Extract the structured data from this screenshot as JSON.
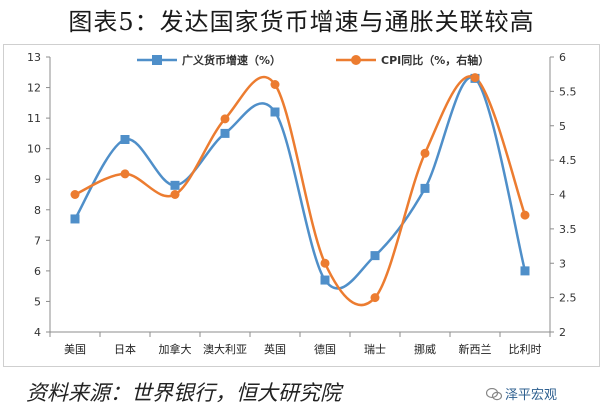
{
  "title": "图表5：发达国家货币增速与通胀关联较高",
  "source": "资料来源：世界银行，恒大研究院",
  "watermark": "泽平宏观",
  "chart_data": {
    "type": "line",
    "categories": [
      "美国",
      "日本",
      "加拿大",
      "澳大利亚",
      "英国",
      "德国",
      "瑞士",
      "挪威",
      "新西兰",
      "比利时"
    ],
    "series": [
      {
        "name": "广义货币增速（%）",
        "axis": "left",
        "marker": "square",
        "color": "#4f8fc9",
        "values": [
          7.7,
          10.3,
          8.8,
          10.5,
          11.2,
          5.7,
          6.5,
          8.7,
          12.3,
          6.0
        ]
      },
      {
        "name": "CPI同比（%，右轴）",
        "axis": "right",
        "marker": "circle",
        "color": "#ec7c30",
        "values": [
          4.0,
          4.3,
          4.0,
          5.1,
          5.6,
          3.0,
          2.5,
          4.6,
          5.7,
          3.7
        ]
      }
    ],
    "y_left": {
      "min": 4,
      "max": 13,
      "step": 1
    },
    "y_right": {
      "min": 2,
      "max": 6,
      "step": 0.5
    },
    "grid": false,
    "legend_position": "top"
  }
}
